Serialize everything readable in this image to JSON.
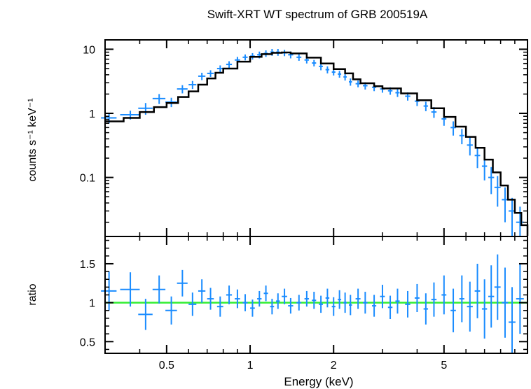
{
  "chart_data": [
    {
      "type": "scatter",
      "panel": "spectrum",
      "title": "Swift-XRT WT spectrum of GRB 200519A",
      "ylabel": "counts s⁻¹ keV⁻¹",
      "xscale": "log",
      "yscale": "log",
      "xlim": [
        0.3,
        10
      ],
      "ylim": [
        0.012,
        14
      ],
      "yticklabels": [
        "10",
        "1",
        "0.1"
      ],
      "yticks": [
        10,
        1,
        0.1
      ],
      "grid": false,
      "colors": {
        "data": "#1a8cff",
        "model": "#000000"
      },
      "series": [
        {
          "kind": "data",
          "x": [
            0.31,
            0.37,
            0.42,
            0.47,
            0.52,
            0.57,
            0.62,
            0.67,
            0.72,
            0.78,
            0.84,
            0.9,
            0.96,
            1.02,
            1.08,
            1.14,
            1.2,
            1.26,
            1.33,
            1.4,
            1.5,
            1.6,
            1.7,
            1.8,
            1.9,
            2.0,
            2.1,
            2.2,
            2.3,
            2.45,
            2.6,
            2.8,
            3.0,
            3.2,
            3.4,
            3.7,
            4.0,
            4.3,
            4.6,
            5.0,
            5.4,
            5.8,
            6.2,
            6.6,
            7.0,
            7.4,
            7.8,
            8.3,
            8.8,
            9.4
          ],
          "xerr": [
            0.02,
            0.03,
            0.025,
            0.025,
            0.025,
            0.025,
            0.02,
            0.02,
            0.02,
            0.02,
            0.02,
            0.02,
            0.02,
            0.02,
            0.02,
            0.02,
            0.02,
            0.02,
            0.03,
            0.03,
            0.03,
            0.03,
            0.03,
            0.03,
            0.03,
            0.03,
            0.03,
            0.03,
            0.03,
            0.05,
            0.05,
            0.05,
            0.06,
            0.06,
            0.06,
            0.08,
            0.08,
            0.08,
            0.1,
            0.1,
            0.12,
            0.12,
            0.15,
            0.15,
            0.15,
            0.18,
            0.2,
            0.22,
            0.25,
            0.3
          ],
          "y": [
            0.85,
            0.95,
            1.2,
            1.7,
            1.5,
            2.4,
            2.8,
            3.8,
            4.2,
            5.0,
            5.8,
            6.8,
            7.5,
            7.8,
            8.2,
            8.6,
            9.0,
            9.0,
            8.8,
            8.2,
            7.5,
            6.8,
            6.1,
            5.4,
            4.8,
            4.4,
            4.1,
            3.7,
            3.1,
            2.9,
            2.7,
            2.55,
            2.4,
            2.25,
            2.1,
            1.85,
            1.55,
            1.3,
            1.05,
            0.82,
            0.6,
            0.45,
            0.32,
            0.22,
            0.15,
            0.1,
            0.07,
            0.045,
            0.03,
            0.02
          ],
          "yerr": [
            0.15,
            0.15,
            0.25,
            0.3,
            0.25,
            0.35,
            0.4,
            0.5,
            0.5,
            0.6,
            0.7,
            0.8,
            0.8,
            0.9,
            1.0,
            1.0,
            1.1,
            1.1,
            1.0,
            1.0,
            0.9,
            0.8,
            0.7,
            0.7,
            0.6,
            0.5,
            0.5,
            0.45,
            0.4,
            0.35,
            0.35,
            0.33,
            0.3,
            0.3,
            0.3,
            0.27,
            0.25,
            0.22,
            0.2,
            0.18,
            0.15,
            0.12,
            0.1,
            0.08,
            0.06,
            0.045,
            0.035,
            0.025,
            0.018,
            0.015
          ]
        },
        {
          "kind": "model",
          "x": [
            0.3,
            0.35,
            0.4,
            0.45,
            0.5,
            0.55,
            0.6,
            0.65,
            0.7,
            0.75,
            0.8,
            0.9,
            1.0,
            1.1,
            1.2,
            1.3,
            1.4,
            1.6,
            1.8,
            2.0,
            2.2,
            2.35,
            2.5,
            2.8,
            3.0,
            3.5,
            4.0,
            4.5,
            5.0,
            5.5,
            6.0,
            6.5,
            7.0,
            7.5,
            8.0,
            8.5,
            9.0,
            9.5,
            10.0
          ],
          "y": [
            0.75,
            0.85,
            1.05,
            1.25,
            1.45,
            1.8,
            2.2,
            2.8,
            3.5,
            4.3,
            5.0,
            6.4,
            7.6,
            8.4,
            8.8,
            8.9,
            8.6,
            7.4,
            6.0,
            4.9,
            4.2,
            3.4,
            2.95,
            2.65,
            2.45,
            2.05,
            1.6,
            1.2,
            0.88,
            0.62,
            0.43,
            0.29,
            0.19,
            0.12,
            0.075,
            0.045,
            0.028,
            0.018,
            0.012
          ]
        }
      ]
    },
    {
      "type": "scatter",
      "panel": "ratio",
      "xlabel": "Energy (keV)",
      "ylabel": "ratio",
      "xscale": "log",
      "yscale": "linear",
      "xlim": [
        0.3,
        10
      ],
      "ylim": [
        0.35,
        1.85
      ],
      "xticks": [
        0.5,
        1,
        2,
        5
      ],
      "xticklabels": [
        "0.5",
        "1",
        "2",
        "5"
      ],
      "yticks": [
        0.5,
        1,
        1.5
      ],
      "yticklabels": [
        "0.5",
        "1",
        "1.5"
      ],
      "grid": false,
      "colors": {
        "data": "#1a8cff",
        "reference": "#33ee33"
      },
      "reference_line": 1,
      "series": [
        {
          "kind": "data",
          "x": [
            0.31,
            0.37,
            0.42,
            0.47,
            0.52,
            0.57,
            0.62,
            0.67,
            0.72,
            0.78,
            0.84,
            0.9,
            0.96,
            1.02,
            1.08,
            1.14,
            1.2,
            1.26,
            1.33,
            1.4,
            1.5,
            1.6,
            1.7,
            1.8,
            1.9,
            2.0,
            2.1,
            2.2,
            2.3,
            2.45,
            2.6,
            2.8,
            3.0,
            3.2,
            3.4,
            3.7,
            4.0,
            4.3,
            4.6,
            5.0,
            5.4,
            5.8,
            6.2,
            6.6,
            7.0,
            7.4,
            7.8,
            8.3,
            8.8,
            9.4
          ],
          "xerr": [
            0.02,
            0.03,
            0.025,
            0.025,
            0.025,
            0.025,
            0.02,
            0.02,
            0.02,
            0.02,
            0.02,
            0.02,
            0.02,
            0.02,
            0.02,
            0.02,
            0.02,
            0.02,
            0.03,
            0.03,
            0.03,
            0.03,
            0.03,
            0.03,
            0.03,
            0.03,
            0.03,
            0.03,
            0.03,
            0.05,
            0.05,
            0.05,
            0.06,
            0.06,
            0.06,
            0.08,
            0.08,
            0.08,
            0.1,
            0.1,
            0.12,
            0.12,
            0.15,
            0.15,
            0.15,
            0.18,
            0.2,
            0.22,
            0.25,
            0.3
          ],
          "y": [
            1.15,
            1.17,
            0.85,
            1.17,
            0.9,
            1.25,
            0.98,
            1.15,
            1.05,
            0.95,
            1.1,
            1.05,
            1.0,
            0.93,
            1.05,
            1.12,
            0.95,
            1.02,
            1.08,
            0.96,
            1.0,
            1.05,
            1.03,
            0.98,
            1.06,
            0.95,
            1.04,
            1.0,
            0.97,
            1.05,
            1.0,
            0.96,
            1.08,
            0.94,
            1.02,
            0.98,
            1.06,
            0.92,
            1.04,
            1.1,
            0.9,
            1.05,
            0.95,
            1.15,
            0.92,
            1.08,
            1.2,
            1.0,
            0.75,
            1.05
          ],
          "yerr": [
            0.25,
            0.22,
            0.2,
            0.18,
            0.18,
            0.17,
            0.15,
            0.15,
            0.14,
            0.13,
            0.12,
            0.12,
            0.11,
            0.11,
            0.1,
            0.1,
            0.1,
            0.1,
            0.1,
            0.1,
            0.1,
            0.1,
            0.11,
            0.11,
            0.12,
            0.12,
            0.12,
            0.13,
            0.13,
            0.13,
            0.14,
            0.14,
            0.15,
            0.15,
            0.16,
            0.17,
            0.18,
            0.2,
            0.22,
            0.25,
            0.28,
            0.3,
            0.32,
            0.35,
            0.38,
            0.4,
            0.42,
            0.45,
            0.45,
            0.45
          ]
        }
      ]
    }
  ]
}
